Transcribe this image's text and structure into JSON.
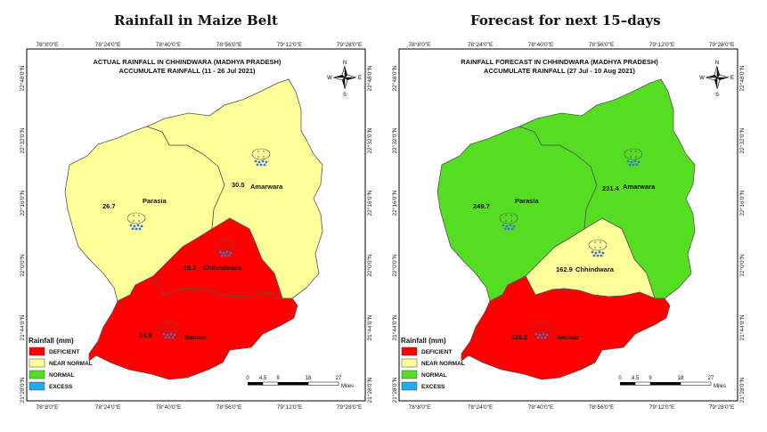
{
  "headings": {
    "left": "Rainfall in Maize Belt",
    "right": "Forecast for next 15–days"
  },
  "coords": {
    "lon": [
      "78°8'0\"E",
      "78°24'0\"E",
      "78°40'0\"E",
      "78°56'0\"E",
      "79°12'0\"E",
      "79°28'0\"E"
    ],
    "lat": [
      "22°48'0\"N",
      "22°32'0\"N",
      "22°16'0\"N",
      "22°0'0\"N",
      "21°44'0\"N",
      "21°28'0\"N"
    ]
  },
  "legend": {
    "title": "Rainfall (mm)",
    "items": [
      {
        "label": "DEFICIENT",
        "color": "#ff0000"
      },
      {
        "label": "NEAR NORMAL",
        "color": "#ffff99"
      },
      {
        "label": "NORMAL",
        "color": "#55dd22"
      },
      {
        "label": "EXCESS",
        "color": "#22aaee"
      }
    ]
  },
  "scalebar": {
    "ticks": [
      "0",
      "4.5",
      "9",
      "18",
      "27"
    ],
    "unit": "Miles"
  },
  "compass": {
    "n": "N",
    "s": "S",
    "e": "E",
    "w": "W"
  },
  "maps": {
    "left": {
      "title1": "ACTUAL RAINFALL IN CHHINDWARA (MADHYA PRADESH)",
      "title2": "ACCUMULATE RAINFALL (11 - 26 Jul 2021)",
      "districts": {
        "parasia": {
          "name": "Parasia",
          "value": "26.7",
          "category": "NEAR NORMAL",
          "color": "#ffff99"
        },
        "amarwara": {
          "name": "Amarwara",
          "value": "30.5",
          "category": "NEAR NORMAL",
          "color": "#ffff99"
        },
        "chhindwara": {
          "name": "Chhindwara",
          "value": "19.1",
          "category": "DEFICIENT",
          "color": "#ff0000"
        },
        "sausar": {
          "name": "Sausar",
          "value": "14.9",
          "category": "DEFICIENT",
          "color": "#ff0000"
        }
      }
    },
    "right": {
      "title1": "RAINFALL FORECAST IN CHHINDWARA (MADHYA PRADESH)",
      "title2": "ACCUMULATE RAINFALL (27 Jul - 10 Aug 2021)",
      "districts": {
        "parasia": {
          "name": "Parasia",
          "value": "249.7",
          "category": "NORMAL",
          "color": "#55dd22"
        },
        "amarwara": {
          "name": "Amarwara",
          "value": "231.4",
          "category": "NORMAL",
          "color": "#55dd22"
        },
        "chhindwara": {
          "name": "Chhindwara",
          "value": "162.9",
          "category": "NEAR NORMAL",
          "color": "#ffff99"
        },
        "sausar": {
          "name": "Sausar",
          "value": "116.2",
          "category": "DEFICIENT",
          "color": "#ff0000"
        }
      }
    }
  }
}
